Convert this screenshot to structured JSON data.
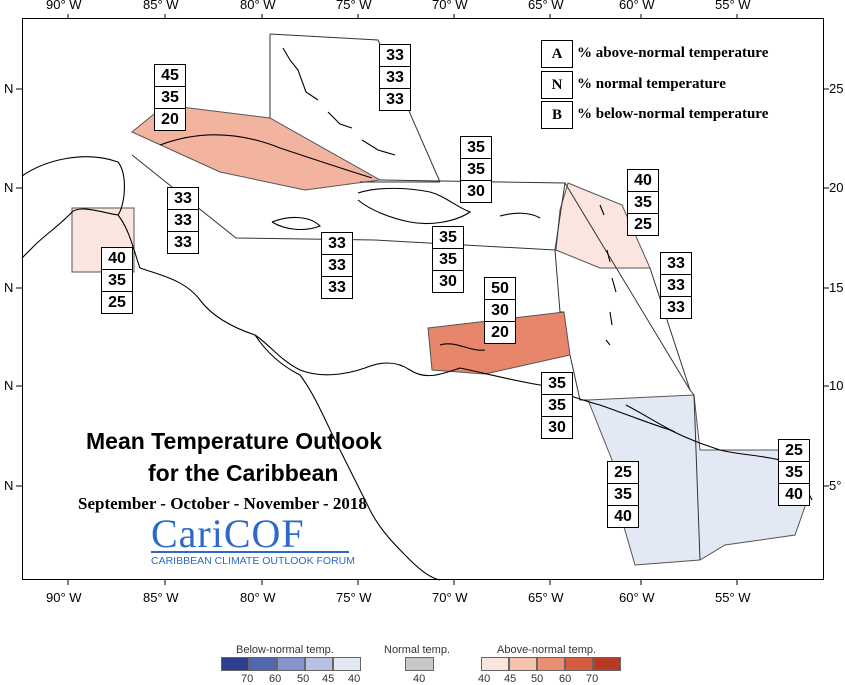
{
  "axes": {
    "top_lon": [
      {
        "text": "90° W",
        "x": "46"
      },
      {
        "text": "85° W",
        "x": "143"
      },
      {
        "text": "80° W",
        "x": "240"
      },
      {
        "text": "75° W",
        "x": "336"
      },
      {
        "text": "70° W",
        "x": "432"
      },
      {
        "text": "65° W",
        "x": "528"
      },
      {
        "text": "60° W",
        "x": "619"
      },
      {
        "text": "55° W",
        "x": "715"
      }
    ],
    "bottom_lon": [
      {
        "text": "90° W"
      },
      {
        "text": "85° W"
      },
      {
        "text": "80° W"
      },
      {
        "text": "75° W"
      },
      {
        "text": "70° W"
      },
      {
        "text": "65° W"
      },
      {
        "text": "60° W"
      },
      {
        "text": "55° W"
      }
    ],
    "left_lat": [
      "N",
      "N",
      "N",
      "N",
      "N"
    ],
    "right_lat": [
      "25",
      "20",
      "15",
      "10",
      "5°"
    ]
  },
  "legend": {
    "items": [
      {
        "key": "A",
        "text": "% above-normal temperature"
      },
      {
        "key": "N",
        "text": "% normal temperature"
      },
      {
        "key": "B",
        "text": "% below-normal temperature"
      }
    ]
  },
  "probabilities": [
    {
      "region": "bahamas",
      "a": "33",
      "n": "33",
      "b": "33"
    },
    {
      "region": "cuba",
      "a": "45",
      "n": "35",
      "b": "20"
    },
    {
      "region": "hispaniola",
      "a": "35",
      "n": "35",
      "b": "30"
    },
    {
      "region": "leeward-islands",
      "a": "40",
      "n": "35",
      "b": "25"
    },
    {
      "region": "cayman",
      "a": "33",
      "n": "33",
      "b": "33"
    },
    {
      "region": "jamaica",
      "a": "33",
      "n": "33",
      "b": "33"
    },
    {
      "region": "puerto-rico",
      "a": "35",
      "n": "35",
      "b": "30"
    },
    {
      "region": "belize",
      "a": "40",
      "n": "35",
      "b": "25"
    },
    {
      "region": "windward-islands",
      "a": "33",
      "n": "33",
      "b": "33"
    },
    {
      "region": "abc-islands",
      "a": "50",
      "n": "30",
      "b": "20"
    },
    {
      "region": "trinidad",
      "a": "35",
      "n": "35",
      "b": "30"
    },
    {
      "region": "guyana",
      "a": "25",
      "n": "35",
      "b": "40"
    },
    {
      "region": "suriname",
      "a": "25",
      "n": "35",
      "b": "40"
    }
  ],
  "title": {
    "line1": "Mean Temperature Outlook",
    "line2": "for the Caribbean",
    "period": "September - October - November - 2018"
  },
  "logo": {
    "name": "CariCOF",
    "full": "CARIBBEAN CLIMATE OUTLOOK FORUM"
  },
  "color_scale": {
    "below_title": "Below-normal temp.",
    "normal_title": "Normal temp.",
    "above_title": "Above-normal temp.",
    "below_ticks": [
      "70",
      "60",
      "50",
      "45",
      "40"
    ],
    "normal_ticks": [
      "40"
    ],
    "above_ticks": [
      "40",
      "45",
      "50",
      "60",
      "70"
    ],
    "below_colors": [
      "#2e3f8f",
      "#5366b0",
      "#8595cc",
      "#b8c2e3",
      "#e3e8f5"
    ],
    "normal_color": "#c8c8c8",
    "above_colors": [
      "#fbe6df",
      "#f6c3ad",
      "#ea8f72",
      "#d65c41",
      "#b83a24"
    ]
  }
}
